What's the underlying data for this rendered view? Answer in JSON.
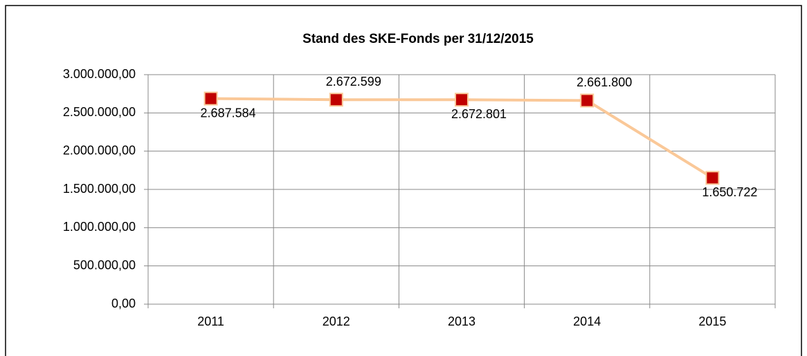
{
  "chart_data": {
    "type": "line",
    "title": "Stand des SKE-Fonds per 31/12/2015",
    "categories": [
      "2011",
      "2012",
      "2013",
      "2014",
      "2015"
    ],
    "series": [
      {
        "name": "Stand",
        "color": "#fac898",
        "marker_color": "#c00000",
        "values": [
          2687584,
          2672599,
          2672801,
          2661800,
          1650722
        ],
        "value_labels": [
          "2.687.584",
          "2.672.599",
          "2.672.801",
          "2.661.800",
          "1.650.722"
        ]
      }
    ],
    "ylim": [
      0,
      3000000
    ],
    "yticks": [
      {
        "value": 0,
        "label": "0,00"
      },
      {
        "value": 500000,
        "label": "500.000,00"
      },
      {
        "value": 1000000,
        "label": "1.000.000,00"
      },
      {
        "value": 1500000,
        "label": "1.500.000,00"
      },
      {
        "value": 2000000,
        "label": "2.000.000,00"
      },
      {
        "value": 2500000,
        "label": "2.500.000,00"
      },
      {
        "value": 3000000,
        "label": "3.000.000,00"
      }
    ],
    "grid": true
  }
}
